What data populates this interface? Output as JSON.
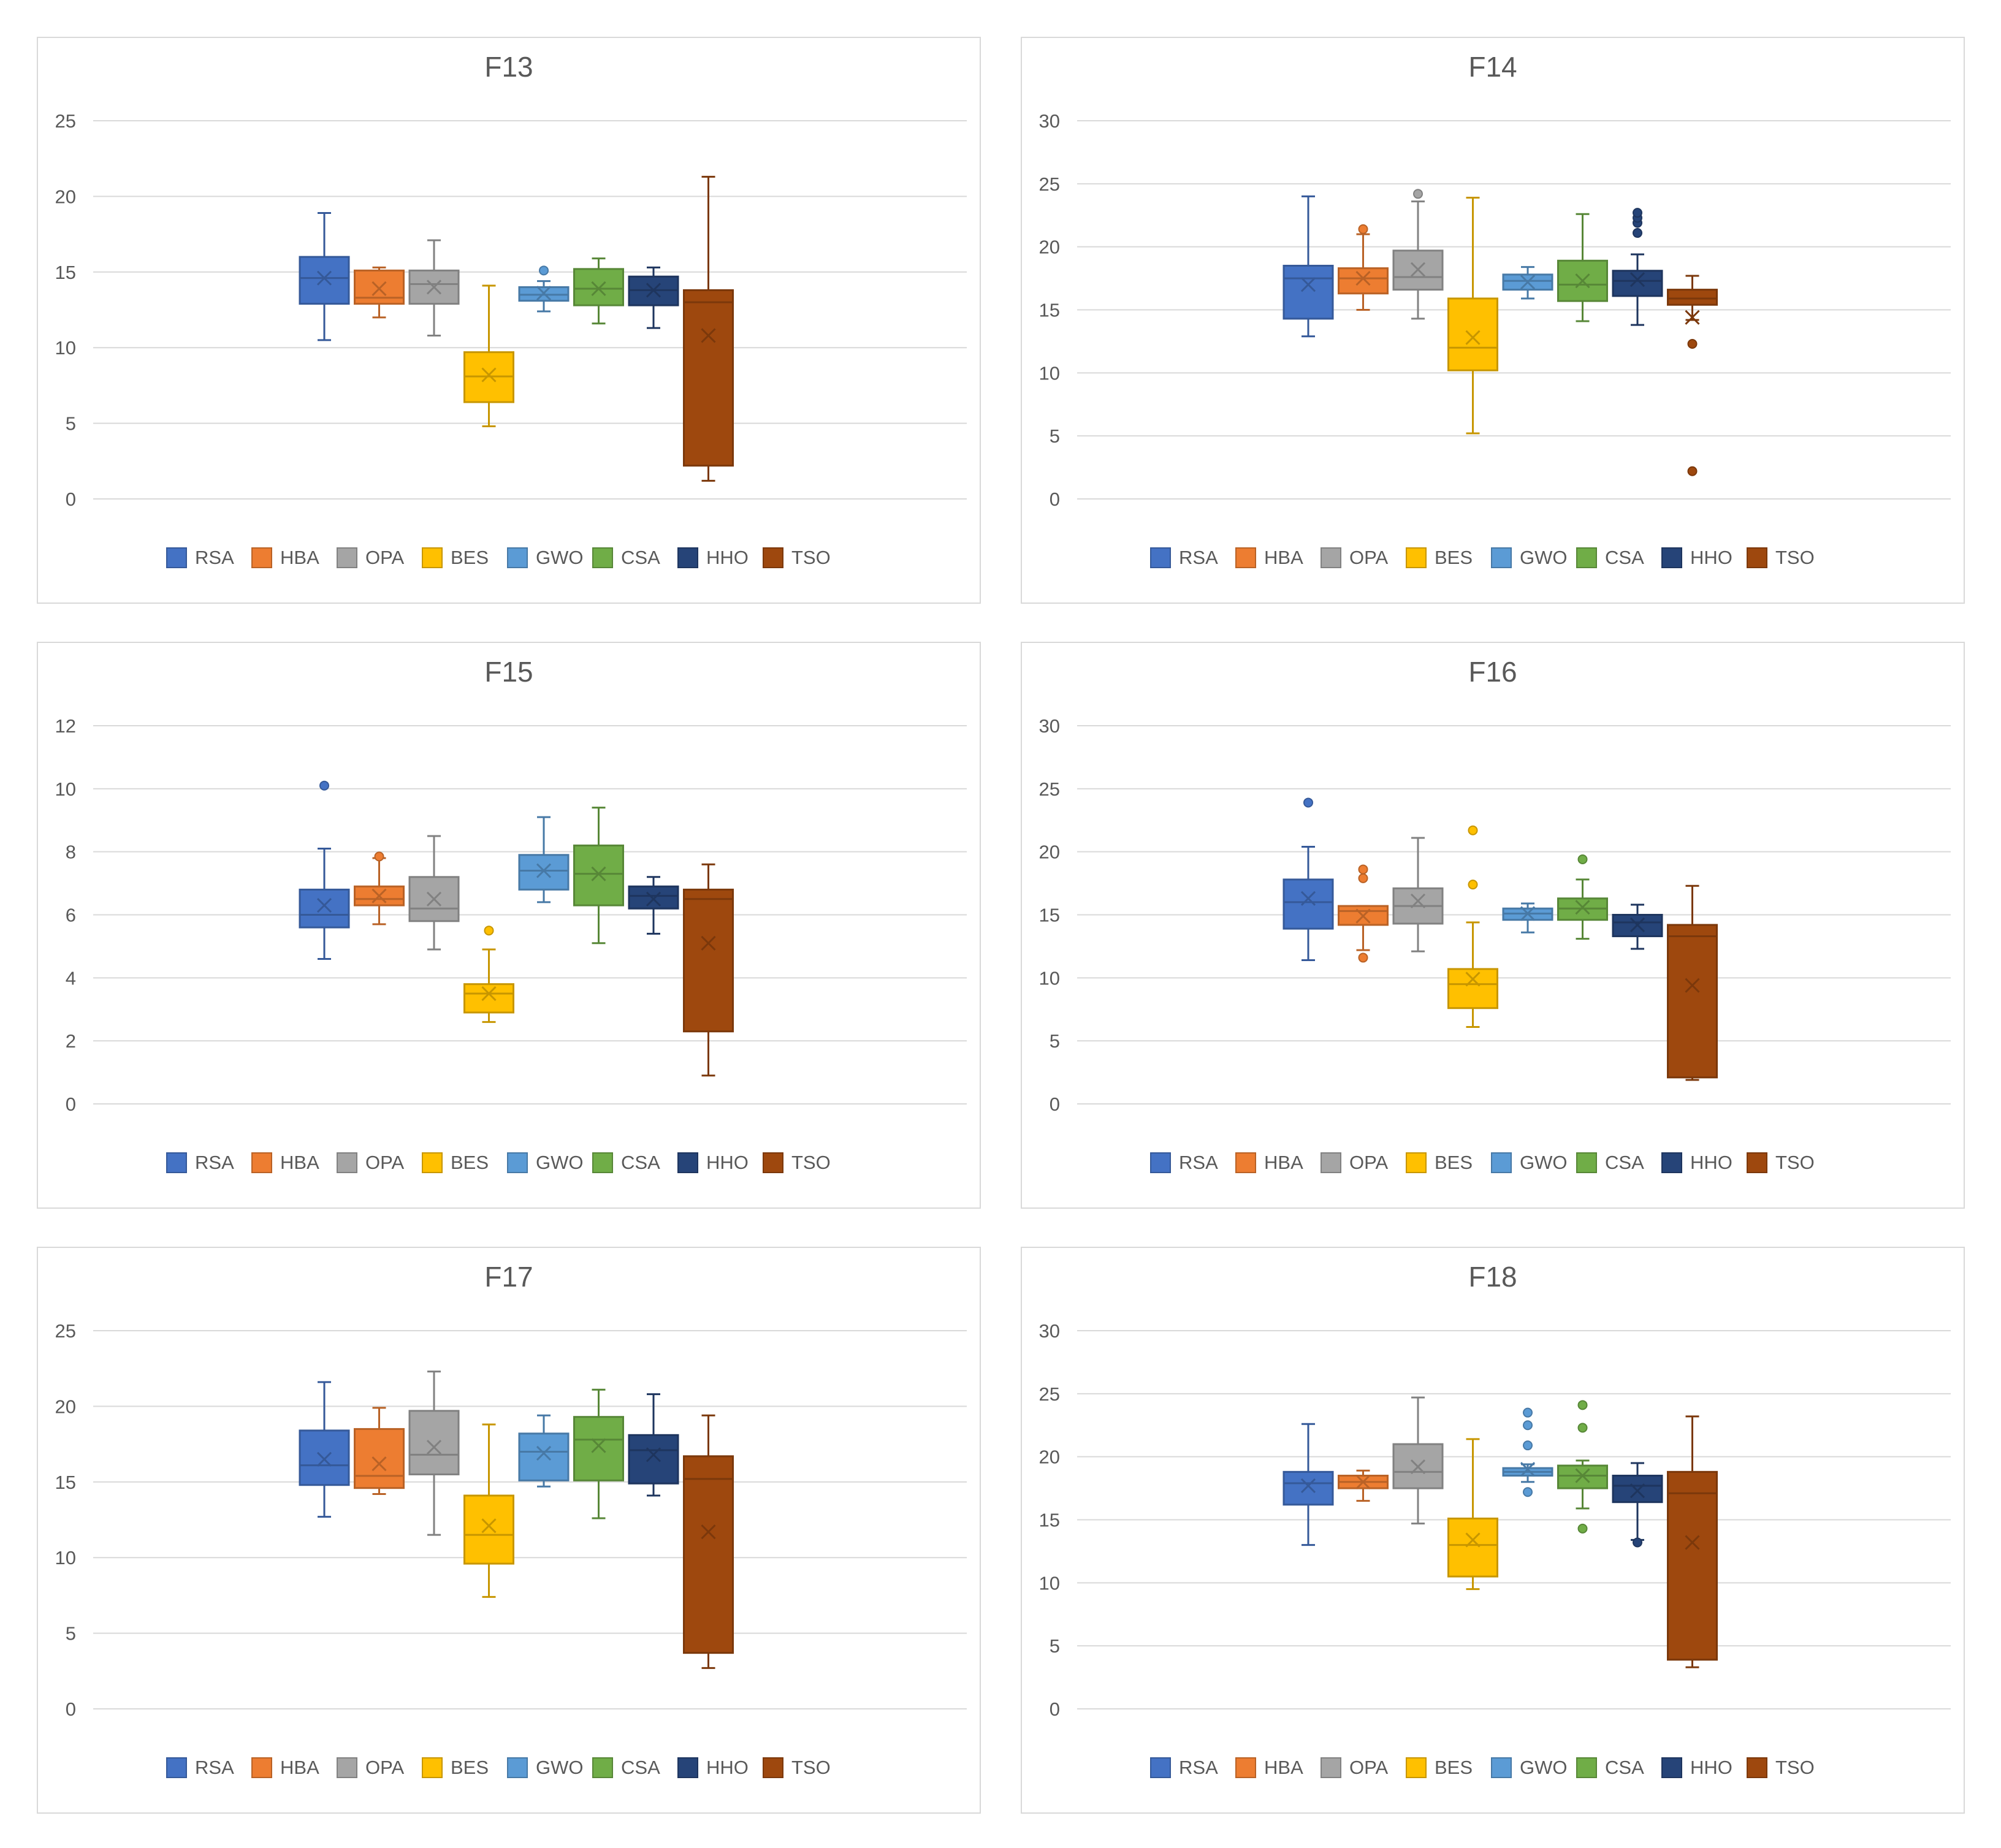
{
  "colors": {
    "RSA": "#4472c4",
    "HBA": "#ed7d31",
    "OPA": "#a5a5a5",
    "BES": "#ffc000",
    "GWO": "#5b9bd5",
    "CSA": "#70ad47",
    "HHO": "#264478",
    "TSO": "#9e480e",
    "grid": "#d9d9d9",
    "text": "#595959"
  },
  "chart_data": [
    {
      "type": "boxplot",
      "title": "F13",
      "ylim": [
        0,
        25
      ],
      "yticks": [
        0,
        5,
        10,
        15,
        20,
        25
      ],
      "legend_position": "bottom",
      "grid": true,
      "series": [
        {
          "name": "RSA",
          "min": 10.5,
          "q1": 12.9,
          "median": 14.6,
          "q3": 16.0,
          "max": 18.9,
          "mean": 14.6,
          "outliers": []
        },
        {
          "name": "HBA",
          "min": 12.0,
          "q1": 12.9,
          "median": 13.3,
          "q3": 15.1,
          "max": 15.3,
          "mean": 13.9,
          "outliers": []
        },
        {
          "name": "OPA",
          "min": 10.8,
          "q1": 12.9,
          "median": 14.2,
          "q3": 15.1,
          "max": 17.1,
          "mean": 14.0,
          "outliers": []
        },
        {
          "name": "BES",
          "min": 4.8,
          "q1": 6.4,
          "median": 8.1,
          "q3": 9.7,
          "max": 14.1,
          "mean": 8.2,
          "outliers": []
        },
        {
          "name": "GWO",
          "min": 12.4,
          "q1": 13.1,
          "median": 13.5,
          "q3": 14.0,
          "max": 14.4,
          "mean": 13.6,
          "outliers": [
            15.1
          ]
        },
        {
          "name": "CSA",
          "min": 11.6,
          "q1": 12.8,
          "median": 13.9,
          "q3": 15.2,
          "max": 15.9,
          "mean": 13.9,
          "outliers": []
        },
        {
          "name": "HHO",
          "min": 11.3,
          "q1": 12.8,
          "median": 13.8,
          "q3": 14.7,
          "max": 15.3,
          "mean": 13.8,
          "outliers": []
        },
        {
          "name": "TSO",
          "min": 1.2,
          "q1": 2.2,
          "median": 13.0,
          "q3": 13.8,
          "max": 21.3,
          "mean": 10.8,
          "outliers": []
        }
      ]
    },
    {
      "type": "boxplot",
      "title": "F14",
      "ylim": [
        0,
        30
      ],
      "yticks": [
        0,
        5,
        10,
        15,
        20,
        25,
        30
      ],
      "legend_position": "bottom",
      "grid": true,
      "series": [
        {
          "name": "RSA",
          "min": 12.9,
          "q1": 14.3,
          "median": 17.5,
          "q3": 18.5,
          "max": 24.0,
          "mean": 17.0,
          "outliers": []
        },
        {
          "name": "HBA",
          "min": 15.0,
          "q1": 16.3,
          "median": 17.5,
          "q3": 18.3,
          "max": 21.0,
          "mean": 17.5,
          "outliers": [
            21.4
          ]
        },
        {
          "name": "OPA",
          "min": 14.3,
          "q1": 16.6,
          "median": 17.6,
          "q3": 19.7,
          "max": 23.6,
          "mean": 18.2,
          "outliers": [
            24.2
          ]
        },
        {
          "name": "BES",
          "min": 5.2,
          "q1": 10.2,
          "median": 12.0,
          "q3": 15.9,
          "max": 23.9,
          "mean": 12.8,
          "outliers": []
        },
        {
          "name": "GWO",
          "min": 15.9,
          "q1": 16.6,
          "median": 17.3,
          "q3": 17.8,
          "max": 18.4,
          "mean": 17.2,
          "outliers": []
        },
        {
          "name": "CSA",
          "min": 14.1,
          "q1": 15.7,
          "median": 17.0,
          "q3": 18.9,
          "max": 22.6,
          "mean": 17.3,
          "outliers": []
        },
        {
          "name": "HHO",
          "min": 13.8,
          "q1": 16.1,
          "median": 17.3,
          "q3": 18.1,
          "max": 19.4,
          "mean": 17.4,
          "outliers": [
            21.1,
            21.9,
            22.3,
            22.7
          ]
        },
        {
          "name": "TSO",
          "min": 14.2,
          "q1": 15.4,
          "median": 15.9,
          "q3": 16.6,
          "max": 17.7,
          "mean": 14.4,
          "outliers": [
            12.3,
            2.2
          ]
        }
      ]
    },
    {
      "type": "boxplot",
      "title": "F15",
      "ylim": [
        0,
        12
      ],
      "yticks": [
        0,
        2,
        4,
        6,
        8,
        10,
        12
      ],
      "legend_position": "bottom",
      "grid": true,
      "series": [
        {
          "name": "RSA",
          "min": 4.6,
          "q1": 5.6,
          "median": 6.0,
          "q3": 6.8,
          "max": 8.1,
          "mean": 6.3,
          "outliers": [
            10.1
          ]
        },
        {
          "name": "HBA",
          "min": 5.7,
          "q1": 6.3,
          "median": 6.5,
          "q3": 6.9,
          "max": 7.8,
          "mean": 6.6,
          "outliers": [
            7.85
          ]
        },
        {
          "name": "OPA",
          "min": 4.9,
          "q1": 5.8,
          "median": 6.2,
          "q3": 7.2,
          "max": 8.5,
          "mean": 6.5,
          "outliers": []
        },
        {
          "name": "BES",
          "min": 2.6,
          "q1": 2.9,
          "median": 3.5,
          "q3": 3.8,
          "max": 4.9,
          "mean": 3.5,
          "outliers": [
            5.5
          ]
        },
        {
          "name": "GWO",
          "min": 6.4,
          "q1": 6.8,
          "median": 7.4,
          "q3": 7.9,
          "max": 9.1,
          "mean": 7.4,
          "outliers": []
        },
        {
          "name": "CSA",
          "min": 5.1,
          "q1": 6.3,
          "median": 7.3,
          "q3": 8.2,
          "max": 9.4,
          "mean": 7.3,
          "outliers": []
        },
        {
          "name": "HHO",
          "min": 5.4,
          "q1": 6.2,
          "median": 6.6,
          "q3": 6.9,
          "max": 7.2,
          "mean": 6.5,
          "outliers": []
        },
        {
          "name": "TSO",
          "min": 0.9,
          "q1": 2.3,
          "median": 6.5,
          "q3": 6.8,
          "max": 7.6,
          "mean": 5.1,
          "outliers": []
        }
      ]
    },
    {
      "type": "boxplot",
      "title": "F16",
      "ylim": [
        0,
        30
      ],
      "yticks": [
        0,
        5,
        10,
        15,
        20,
        25,
        30
      ],
      "legend_position": "bottom",
      "grid": true,
      "series": [
        {
          "name": "RSA",
          "min": 11.4,
          "q1": 13.9,
          "median": 16.0,
          "q3": 17.8,
          "max": 20.4,
          "mean": 16.3,
          "outliers": [
            23.9
          ]
        },
        {
          "name": "HBA",
          "min": 12.2,
          "q1": 14.2,
          "median": 15.3,
          "q3": 15.7,
          "max": 15.7,
          "mean": 14.9,
          "outliers": [
            18.6,
            17.9,
            11.6
          ]
        },
        {
          "name": "OPA",
          "min": 12.1,
          "q1": 14.3,
          "median": 15.7,
          "q3": 17.1,
          "max": 21.1,
          "mean": 16.1,
          "outliers": []
        },
        {
          "name": "BES",
          "min": 6.1,
          "q1": 7.6,
          "median": 9.5,
          "q3": 10.7,
          "max": 14.4,
          "mean": 9.9,
          "outliers": [
            21.7,
            17.4
          ]
        },
        {
          "name": "GWO",
          "min": 13.6,
          "q1": 14.6,
          "median": 15.1,
          "q3": 15.5,
          "max": 15.9,
          "mean": 15.1,
          "outliers": []
        },
        {
          "name": "CSA",
          "min": 13.1,
          "q1": 14.6,
          "median": 15.5,
          "q3": 16.3,
          "max": 17.8,
          "mean": 15.6,
          "outliers": [
            19.4
          ]
        },
        {
          "name": "HHO",
          "min": 12.3,
          "q1": 13.3,
          "median": 14.4,
          "q3": 15.0,
          "max": 15.8,
          "mean": 14.2,
          "outliers": []
        },
        {
          "name": "TSO",
          "min": 1.9,
          "q1": 2.1,
          "median": 13.3,
          "q3": 14.2,
          "max": 17.3,
          "mean": 9.4,
          "outliers": []
        }
      ]
    },
    {
      "type": "boxplot",
      "title": "F17",
      "ylim": [
        0,
        25
      ],
      "yticks": [
        0,
        5,
        10,
        15,
        20,
        25
      ],
      "legend_position": "bottom",
      "grid": true,
      "series": [
        {
          "name": "RSA",
          "min": 12.7,
          "q1": 14.8,
          "median": 16.1,
          "q3": 18.4,
          "max": 21.6,
          "mean": 16.5,
          "outliers": []
        },
        {
          "name": "HBA",
          "min": 14.2,
          "q1": 14.6,
          "median": 15.4,
          "q3": 18.5,
          "max": 19.9,
          "mean": 16.2,
          "outliers": []
        },
        {
          "name": "OPA",
          "min": 11.5,
          "q1": 15.5,
          "median": 16.8,
          "q3": 19.7,
          "max": 22.3,
          "mean": 17.3,
          "outliers": []
        },
        {
          "name": "BES",
          "min": 7.4,
          "q1": 9.6,
          "median": 11.5,
          "q3": 14.1,
          "max": 18.8,
          "mean": 12.1,
          "outliers": []
        },
        {
          "name": "GWO",
          "min": 14.7,
          "q1": 15.1,
          "median": 17.0,
          "q3": 18.2,
          "max": 19.4,
          "mean": 16.9,
          "outliers": []
        },
        {
          "name": "CSA",
          "min": 12.6,
          "q1": 15.1,
          "median": 17.8,
          "q3": 19.3,
          "max": 21.1,
          "mean": 17.4,
          "outliers": []
        },
        {
          "name": "HHO",
          "min": 14.1,
          "q1": 14.9,
          "median": 17.1,
          "q3": 18.1,
          "max": 20.8,
          "mean": 16.8,
          "outliers": []
        },
        {
          "name": "TSO",
          "min": 2.7,
          "q1": 3.7,
          "median": 15.2,
          "q3": 16.7,
          "max": 19.4,
          "mean": 11.7,
          "outliers": []
        }
      ]
    },
    {
      "type": "boxplot",
      "title": "F18",
      "ylim": [
        0,
        30
      ],
      "yticks": [
        0,
        5,
        10,
        15,
        20,
        25,
        30
      ],
      "legend_position": "bottom",
      "grid": true,
      "series": [
        {
          "name": "RSA",
          "min": 13.0,
          "q1": 16.2,
          "median": 17.9,
          "q3": 18.8,
          "max": 22.6,
          "mean": 17.7,
          "outliers": []
        },
        {
          "name": "HBA",
          "min": 16.5,
          "q1": 17.5,
          "median": 18.0,
          "q3": 18.5,
          "max": 18.9,
          "mean": 18.0,
          "outliers": []
        },
        {
          "name": "OPA",
          "min": 14.7,
          "q1": 17.5,
          "median": 18.8,
          "q3": 21.0,
          "max": 24.7,
          "mean": 19.2,
          "outliers": []
        },
        {
          "name": "BES",
          "min": 9.5,
          "q1": 10.5,
          "median": 13.0,
          "q3": 15.1,
          "max": 21.4,
          "mean": 13.4,
          "outliers": []
        },
        {
          "name": "GWO",
          "min": 18.0,
          "q1": 18.5,
          "median": 18.8,
          "q3": 19.1,
          "max": 19.4,
          "mean": 19.0,
          "outliers": [
            23.5,
            22.5,
            20.9,
            17.2
          ]
        },
        {
          "name": "CSA",
          "min": 15.9,
          "q1": 17.5,
          "median": 18.5,
          "q3": 19.3,
          "max": 19.7,
          "mean": 18.5,
          "outliers": [
            24.1,
            22.3,
            14.3
          ]
        },
        {
          "name": "HHO",
          "min": 13.4,
          "q1": 16.4,
          "median": 17.7,
          "q3": 18.5,
          "max": 19.5,
          "mean": 17.3,
          "outliers": [
            13.2
          ]
        },
        {
          "name": "TSO",
          "min": 3.3,
          "q1": 3.9,
          "median": 17.1,
          "q3": 18.8,
          "max": 23.2,
          "mean": 13.2,
          "outliers": []
        }
      ]
    }
  ]
}
